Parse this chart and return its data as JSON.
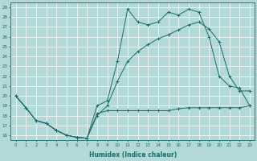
{
  "xlabel": "Humidex (Indice chaleur)",
  "xlim": [
    -0.5,
    23.5
  ],
  "ylim": [
    15.5,
    29.5
  ],
  "yticks": [
    16,
    17,
    18,
    19,
    20,
    21,
    22,
    23,
    24,
    25,
    26,
    27,
    28,
    29
  ],
  "xticks": [
    0,
    1,
    2,
    3,
    4,
    5,
    6,
    7,
    8,
    9,
    10,
    11,
    12,
    13,
    14,
    15,
    16,
    17,
    18,
    19,
    20,
    21,
    22,
    23
  ],
  "bg_color": "#b2d8d8",
  "line_color": "#1a6b6b",
  "grid_color": "#ffffff",
  "line1_x": [
    0,
    1,
    2,
    3,
    4,
    5,
    6,
    7,
    8,
    9,
    10,
    11,
    12,
    13,
    14,
    15,
    16,
    17,
    18,
    19,
    20,
    21,
    22,
    23
  ],
  "line1_y": [
    20.0,
    18.8,
    17.5,
    17.2,
    16.5,
    16.0,
    15.8,
    15.7,
    19.0,
    19.5,
    23.5,
    28.8,
    27.5,
    27.2,
    27.5,
    28.5,
    28.2,
    28.8,
    28.5,
    26.0,
    22.0,
    21.0,
    20.8,
    19.0
  ],
  "line2_x": [
    0,
    1,
    2,
    3,
    4,
    5,
    6,
    7,
    8,
    9,
    10,
    11,
    12,
    13,
    14,
    15,
    16,
    17,
    18,
    19,
    20,
    21,
    22,
    23
  ],
  "line2_y": [
    20.0,
    18.8,
    17.5,
    17.2,
    16.5,
    16.0,
    15.8,
    15.7,
    18.0,
    19.0,
    21.5,
    23.5,
    24.5,
    25.2,
    25.8,
    26.2,
    26.7,
    27.2,
    27.5,
    26.8,
    25.5,
    22.0,
    20.5,
    20.5
  ],
  "line3_x": [
    0,
    1,
    2,
    3,
    4,
    5,
    6,
    7,
    8,
    9,
    10,
    11,
    12,
    13,
    14,
    15,
    16,
    17,
    18,
    19,
    20,
    21,
    22,
    23
  ],
  "line3_y": [
    20.0,
    18.8,
    17.5,
    17.2,
    16.5,
    16.0,
    15.8,
    15.7,
    18.2,
    18.5,
    18.5,
    18.5,
    18.5,
    18.5,
    18.5,
    18.5,
    18.7,
    18.8,
    18.8,
    18.8,
    18.8,
    18.8,
    18.8,
    19.0
  ]
}
